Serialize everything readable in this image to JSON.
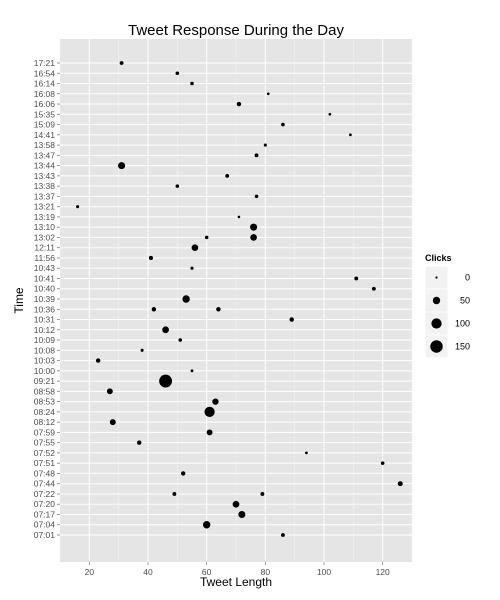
{
  "chart_data": {
    "type": "scatter",
    "title": "Tweet Response During the Day",
    "xlabel": "Tweet Length",
    "ylabel": "Time",
    "xlim": [
      10,
      130
    ],
    "x_ticks": [
      20,
      40,
      60,
      80,
      100,
      120
    ],
    "categories": [
      "07:01",
      "07:04",
      "07:17",
      "07:20",
      "07:22",
      "07:44",
      "07:48",
      "07:51",
      "07:52",
      "07:55",
      "07:59",
      "08:12",
      "08:24",
      "08:53",
      "08:58",
      "09:21",
      "10:00",
      "10:03",
      "10:08",
      "10:09",
      "10:12",
      "10:31",
      "10:36",
      "10:39",
      "10:40",
      "10:41",
      "10:43",
      "11:56",
      "12:11",
      "13:02",
      "13:10",
      "13:19",
      "13:21",
      "13:37",
      "13:38",
      "13:43",
      "13:44",
      "13:47",
      "13:58",
      "14:41",
      "15:09",
      "15:35",
      "16:06",
      "16:08",
      "16:14",
      "16:54",
      "17:21"
    ],
    "points": [
      {
        "time": "07:01",
        "length": 86,
        "clicks": 10
      },
      {
        "time": "07:04",
        "length": 60,
        "clicks": 50
      },
      {
        "time": "07:17",
        "length": 72,
        "clicks": 45
      },
      {
        "time": "07:20",
        "length": 70,
        "clicks": 40
      },
      {
        "time": "07:22",
        "length": 49,
        "clicks": 10
      },
      {
        "time": "07:22",
        "length": 79,
        "clicks": 10
      },
      {
        "time": "07:44",
        "length": 126,
        "clicks": 20
      },
      {
        "time": "07:48",
        "length": 52,
        "clicks": 15
      },
      {
        "time": "07:51",
        "length": 120,
        "clicks": 8
      },
      {
        "time": "07:52",
        "length": 94,
        "clicks": 3
      },
      {
        "time": "07:55",
        "length": 37,
        "clicks": 15
      },
      {
        "time": "07:59",
        "length": 61,
        "clicks": 30
      },
      {
        "time": "08:12",
        "length": 28,
        "clicks": 30
      },
      {
        "time": "08:24",
        "length": 61,
        "clicks": 100
      },
      {
        "time": "08:53",
        "length": 63,
        "clicks": 35
      },
      {
        "time": "08:58",
        "length": 27,
        "clicks": 30
      },
      {
        "time": "09:21",
        "length": 46,
        "clicks": 160
      },
      {
        "time": "10:00",
        "length": 55,
        "clicks": 3
      },
      {
        "time": "10:03",
        "length": 23,
        "clicks": 15
      },
      {
        "time": "10:08",
        "length": 38,
        "clicks": 5
      },
      {
        "time": "10:09",
        "length": 51,
        "clicks": 8
      },
      {
        "time": "10:12",
        "length": 46,
        "clicks": 40
      },
      {
        "time": "10:31",
        "length": 89,
        "clicks": 15
      },
      {
        "time": "10:36",
        "length": 42,
        "clicks": 15
      },
      {
        "time": "10:36",
        "length": 64,
        "clicks": 15
      },
      {
        "time": "10:39",
        "length": 53,
        "clicks": 50
      },
      {
        "time": "10:40",
        "length": 117,
        "clicks": 10
      },
      {
        "time": "10:41",
        "length": 111,
        "clicks": 10
      },
      {
        "time": "10:43",
        "length": 55,
        "clicks": 5
      },
      {
        "time": "11:56",
        "length": 41,
        "clicks": 12
      },
      {
        "time": "12:11",
        "length": 56,
        "clicks": 40
      },
      {
        "time": "13:02",
        "length": 60,
        "clicks": 8
      },
      {
        "time": "13:02",
        "length": 76,
        "clicks": 40
      },
      {
        "time": "13:10",
        "length": 76,
        "clicks": 45
      },
      {
        "time": "13:19",
        "length": 71,
        "clicks": 2
      },
      {
        "time": "13:21",
        "length": 16,
        "clicks": 5
      },
      {
        "time": "13:37",
        "length": 77,
        "clicks": 8
      },
      {
        "time": "13:38",
        "length": 50,
        "clicks": 8
      },
      {
        "time": "13:43",
        "length": 67,
        "clicks": 10
      },
      {
        "time": "13:44",
        "length": 31,
        "clicks": 45
      },
      {
        "time": "13:47",
        "length": 77,
        "clicks": 10
      },
      {
        "time": "13:58",
        "length": 80,
        "clicks": 5
      },
      {
        "time": "14:41",
        "length": 109,
        "clicks": 3
      },
      {
        "time": "15:09",
        "length": 86,
        "clicks": 8
      },
      {
        "time": "15:35",
        "length": 102,
        "clicks": 3
      },
      {
        "time": "16:06",
        "length": 71,
        "clicks": 15
      },
      {
        "time": "16:08",
        "length": 81,
        "clicks": 2
      },
      {
        "time": "16:14",
        "length": 55,
        "clicks": 8
      },
      {
        "time": "16:54",
        "length": 50,
        "clicks": 8
      },
      {
        "time": "17:21",
        "length": 31,
        "clicks": 10
      }
    ],
    "size_legend": {
      "title": "Clicks",
      "breaks": [
        0,
        50,
        100,
        150
      ],
      "labels": [
        "0",
        "50",
        "100",
        "150"
      ],
      "placement": "right"
    },
    "background": "#e5e5e5",
    "grid_color": "#ffffff",
    "point_color": "#000000",
    "grid": true
  }
}
